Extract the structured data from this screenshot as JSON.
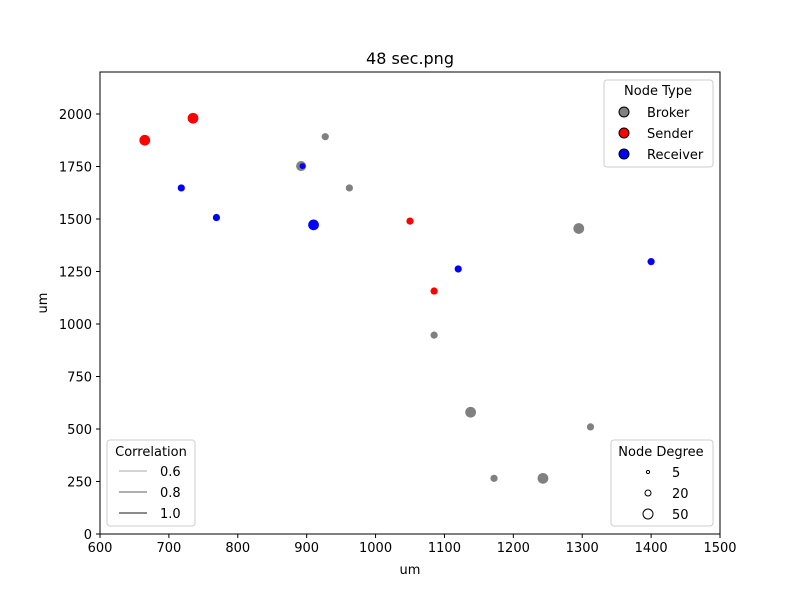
{
  "chart_data": {
    "type": "scatter",
    "title": "48 sec.png",
    "xlabel": "um",
    "ylabel": "um",
    "xlim": [
      600,
      1500
    ],
    "ylim": [
      0,
      2200
    ],
    "xticks": [
      600,
      700,
      800,
      900,
      1000,
      1100,
      1200,
      1300,
      1400,
      1500
    ],
    "yticks": [
      0,
      250,
      500,
      750,
      1000,
      1250,
      1500,
      1750,
      2000
    ],
    "grid": false,
    "colors": {
      "Broker": "#808080",
      "Sender": "#ff0000",
      "Receiver": "#0000ff"
    },
    "points": [
      {
        "x": 665,
        "y": 1875,
        "type": "Sender",
        "degree": 40
      },
      {
        "x": 735,
        "y": 1980,
        "type": "Sender",
        "degree": 40
      },
      {
        "x": 718,
        "y": 1648,
        "type": "Receiver",
        "degree": 18
      },
      {
        "x": 769,
        "y": 1507,
        "type": "Receiver",
        "degree": 18
      },
      {
        "x": 892,
        "y": 1752,
        "type": "Broker",
        "degree": 35
      },
      {
        "x": 894,
        "y": 1752,
        "type": "Receiver",
        "degree": 12
      },
      {
        "x": 927,
        "y": 1892,
        "type": "Broker",
        "degree": 18
      },
      {
        "x": 962,
        "y": 1648,
        "type": "Broker",
        "degree": 18
      },
      {
        "x": 910,
        "y": 1472,
        "type": "Receiver",
        "degree": 40
      },
      {
        "x": 1050,
        "y": 1490,
        "type": "Sender",
        "degree": 18
      },
      {
        "x": 1120,
        "y": 1262,
        "type": "Receiver",
        "degree": 18
      },
      {
        "x": 1085,
        "y": 1157,
        "type": "Sender",
        "degree": 18
      },
      {
        "x": 1085,
        "y": 947,
        "type": "Broker",
        "degree": 18
      },
      {
        "x": 1295,
        "y": 1455,
        "type": "Broker",
        "degree": 40
      },
      {
        "x": 1400,
        "y": 1297,
        "type": "Receiver",
        "degree": 18
      },
      {
        "x": 1138,
        "y": 580,
        "type": "Broker",
        "degree": 40
      },
      {
        "x": 1312,
        "y": 510,
        "type": "Broker",
        "degree": 18
      },
      {
        "x": 1172,
        "y": 265,
        "type": "Broker",
        "degree": 18
      },
      {
        "x": 1243,
        "y": 265,
        "type": "Broker",
        "degree": 40
      }
    ],
    "legend_node_type": {
      "title": "Node Type",
      "placement": "top-right",
      "entries": [
        "Broker",
        "Sender",
        "Receiver"
      ]
    },
    "legend_correlation": {
      "title": "Correlation",
      "placement": "bottom-left",
      "entries": [
        "0.6",
        "0.8",
        "1.0"
      ],
      "values": [
        0.6,
        0.8,
        1.0
      ]
    },
    "legend_node_degree": {
      "title": "Node Degree",
      "placement": "bottom-right",
      "entries": [
        "5",
        "20",
        "50"
      ],
      "values": [
        5,
        20,
        50
      ]
    }
  }
}
